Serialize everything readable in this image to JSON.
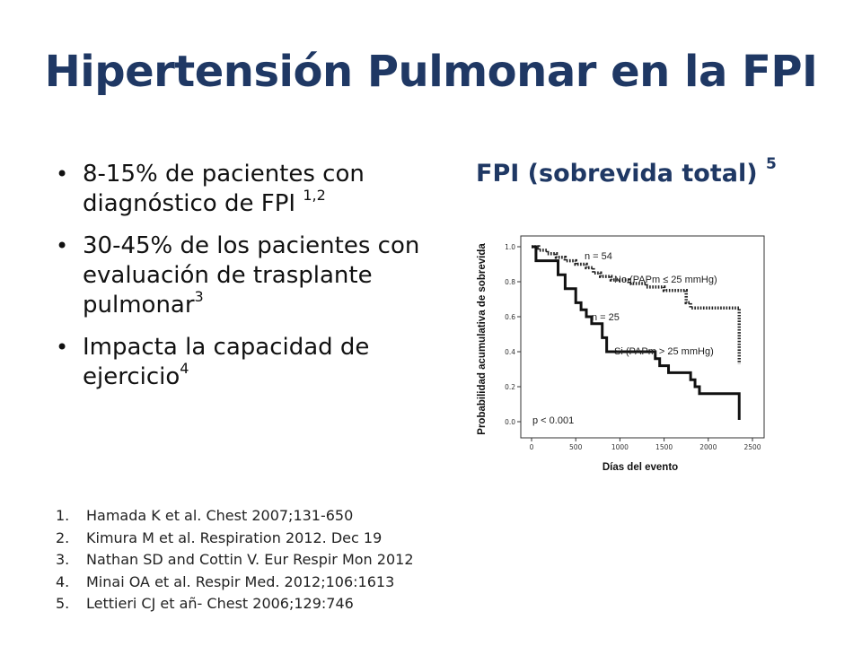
{
  "slide": {
    "title": "Hipertensión Pulmonar en la FPI",
    "bullets": [
      {
        "text": "8-15%  de pacientes con diagnóstico de FPI ",
        "sup": "1,2"
      },
      {
        "text": "30-45% de los pacientes con evaluación de trasplante pulmonar",
        "sup": "3"
      },
      {
        "text": "Impacta la capacidad de ejercicio",
        "sup": "4"
      }
    ],
    "references": [
      {
        "num": "1.",
        "text": "Hamada K et al. Chest 2007;131-650"
      },
      {
        "num": "2.",
        "text": "Kimura M et al. Respiration 2012. Dec 19"
      },
      {
        "num": "3.",
        "text": "Nathan SD and Cottin V. Eur Respir Mon 2012"
      },
      {
        "num": "4.",
        "text": "Minai OA et al. Respir Med. 2012;106:1613"
      },
      {
        "num": "5.",
        "text": "Lettieri CJ et añ- Chest 2006;129:746"
      }
    ],
    "bullet_glyph": "•"
  },
  "chart_data": {
    "type": "line",
    "title": "FPI (sobrevida total) ",
    "title_sup": "5",
    "xlabel": "Días del evento",
    "ylabel": "Probabilidad acumulativa de sobrevida",
    "xlim": [
      0,
      2500
    ],
    "ylim": [
      0,
      1.0
    ],
    "x_ticks": [
      "0",
      "500",
      "1000",
      "1500",
      "2000",
      "2500"
    ],
    "y_ticks": [
      "0.0",
      "0.2",
      "0.4",
      "0.6",
      "0.8",
      "1.0"
    ],
    "grid": false,
    "annotations": {
      "n_no": "n = 54",
      "label_no": "No (PAPm ≤ 25 mmHg)",
      "n_si": "n = 25",
      "label_si": "Si (PAPm > 25 mmHg)",
      "pvalue": "p < 0.001"
    },
    "series": [
      {
        "name": "No (PAPm ≤ 25 mmHg)",
        "style": "dotted",
        "color": "#222222",
        "steps": [
          [
            0,
            1.0
          ],
          [
            80,
            0.98
          ],
          [
            180,
            0.96
          ],
          [
            280,
            0.94
          ],
          [
            380,
            0.92
          ],
          [
            500,
            0.9
          ],
          [
            620,
            0.88
          ],
          [
            700,
            0.85
          ],
          [
            780,
            0.83
          ],
          [
            900,
            0.81
          ],
          [
            1100,
            0.79
          ],
          [
            1300,
            0.77
          ],
          [
            1500,
            0.75
          ],
          [
            1750,
            0.68
          ],
          [
            1800,
            0.65
          ],
          [
            2350,
            0.65
          ],
          [
            2350,
            0.33
          ]
        ]
      },
      {
        "name": "Si (PAPm > 25 mmHg)",
        "style": "solid",
        "color": "#111111",
        "steps": [
          [
            0,
            1.0
          ],
          [
            50,
            0.92
          ],
          [
            300,
            0.92
          ],
          [
            300,
            0.84
          ],
          [
            380,
            0.76
          ],
          [
            500,
            0.68
          ],
          [
            560,
            0.64
          ],
          [
            620,
            0.6
          ],
          [
            680,
            0.56
          ],
          [
            800,
            0.48
          ],
          [
            850,
            0.4
          ],
          [
            1400,
            0.36
          ],
          [
            1450,
            0.32
          ],
          [
            1550,
            0.28
          ],
          [
            1800,
            0.24
          ],
          [
            1850,
            0.2
          ],
          [
            1900,
            0.16
          ],
          [
            2350,
            0.16
          ],
          [
            2350,
            0.01
          ]
        ]
      }
    ]
  }
}
